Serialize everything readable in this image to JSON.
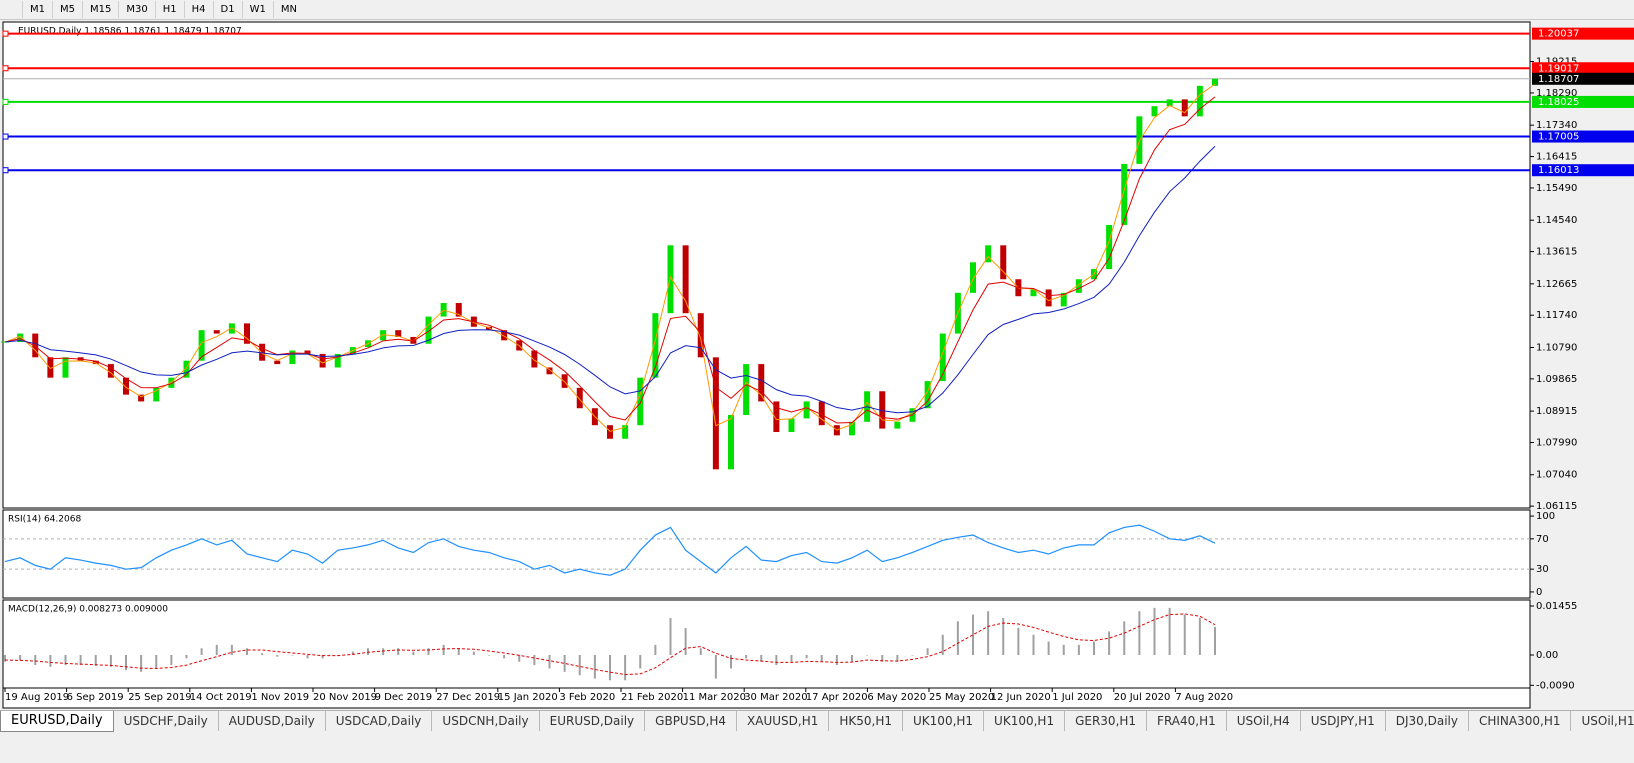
{
  "toolbar": {
    "periods": [
      "M1",
      "M5",
      "M15",
      "M30",
      "H1",
      "H4",
      "D1",
      "W1",
      "MN"
    ]
  },
  "chart_data": [
    {
      "type": "candlestick",
      "title": "EURUSD,Daily  1.18586 1.18761 1.18479 1.18707",
      "x_labels": [
        "19 Aug 2019",
        "6 Sep 2019",
        "25 Sep 2019",
        "14 Oct 2019",
        "1 Nov 2019",
        "20 Nov 2019",
        "9 Dec 2019",
        "27 Dec 2019",
        "15 Jan 2020",
        "3 Feb 2020",
        "21 Feb 2020",
        "11 Mar 2020",
        "30 Mar 2020",
        "17 Apr 2020",
        "6 May 2020",
        "25 May 2020",
        "12 Jun 2020",
        "1 Jul 2020",
        "20 Jul 2020",
        "7 Aug 2020"
      ],
      "close": [
        1.1095,
        1.112,
        1.105,
        1.099,
        1.105,
        1.104,
        1.103,
        1.099,
        1.094,
        1.092,
        1.096,
        1.099,
        1.104,
        1.113,
        1.112,
        1.115,
        1.109,
        1.104,
        1.103,
        1.107,
        1.106,
        1.102,
        1.106,
        1.108,
        1.11,
        1.113,
        1.111,
        1.109,
        1.117,
        1.121,
        1.117,
        1.114,
        1.113,
        1.11,
        1.107,
        1.102,
        1.1,
        1.096,
        1.09,
        1.085,
        1.081,
        1.085,
        1.099,
        1.118,
        1.138,
        1.118,
        1.105,
        1.072,
        1.088,
        1.103,
        1.092,
        1.083,
        1.087,
        1.092,
        1.085,
        1.082,
        1.086,
        1.095,
        1.084,
        1.086,
        1.09,
        1.098,
        1.112,
        1.124,
        1.133,
        1.138,
        1.128,
        1.123,
        1.125,
        1.12,
        1.124,
        1.128,
        1.131,
        1.144,
        1.162,
        1.176,
        1.179,
        1.181,
        1.176,
        1.185,
        1.18707
      ],
      "ylim": [
        1.0606,
        1.2038
      ],
      "yticks": [
        1.06115,
        {
          "value": 1.0704,
          "label": "1.07040"
        },
        {
          "value": 1.0799,
          "label": "1.07990"
        },
        1.08915,
        1.09865,
        {
          "value": 1.1079,
          "label": "1.10790"
        },
        {
          "value": 1.1174,
          "label": "1.11740"
        },
        1.12665,
        1.13615,
        {
          "value": 1.1454,
          "label": "1.14540"
        },
        {
          "value": 1.1549,
          "label": "1.15490"
        },
        1.16415,
        {
          "value": 1.1734,
          "label": "1.17340"
        },
        {
          "value": 1.1829,
          "label": "1.18290"
        },
        1.19215
      ],
      "bull_color": "#00e000",
      "bear_color": "#c00000",
      "levels": [
        {
          "value": 1.20037,
          "color": "#ff0000"
        },
        {
          "value": 1.19017,
          "color": "#ff0000"
        },
        {
          "value": 1.18025,
          "color": "#00dd00"
        },
        {
          "value": 1.17005,
          "color": "#0000ee"
        },
        {
          "value": 1.16013,
          "color": "#0000ee"
        }
      ],
      "current_price": 1.18707
    },
    {
      "type": "line",
      "title": "RSI(14) 64.2068",
      "color": "#1e90ff",
      "values": [
        40,
        45,
        35,
        30,
        45,
        42,
        38,
        35,
        30,
        32,
        45,
        55,
        62,
        70,
        62,
        68,
        50,
        45,
        40,
        55,
        50,
        38,
        55,
        58,
        62,
        68,
        58,
        52,
        65,
        70,
        60,
        55,
        52,
        45,
        40,
        30,
        35,
        25,
        30,
        25,
        22,
        30,
        55,
        75,
        85,
        55,
        40,
        25,
        45,
        60,
        42,
        40,
        48,
        52,
        40,
        38,
        45,
        55,
        40,
        45,
        52,
        60,
        68,
        72,
        75,
        65,
        58,
        52,
        55,
        50,
        58,
        62,
        62,
        78,
        85,
        88,
        80,
        70,
        68,
        74,
        64.2068
      ],
      "ylim": [
        -8,
        108
      ],
      "yticks": [
        0,
        30,
        70,
        100
      ]
    },
    {
      "type": "macd",
      "title": "MACD(12,26,9) 0.008273 0.009000",
      "histogram_color": "#a0a0a0",
      "signal_color": "#e00000",
      "histogram": [
        -0.002,
        -0.0015,
        -0.003,
        -0.0035,
        -0.003,
        -0.003,
        -0.0032,
        -0.0035,
        -0.0045,
        -0.005,
        -0.004,
        -0.003,
        -0.001,
        0.002,
        0.003,
        0.003,
        0.002,
        0.0005,
        -0.0005,
        0,
        -0.001,
        -0.001,
        0,
        0.001,
        0.002,
        0.002,
        0.002,
        0.001,
        0.002,
        0.003,
        0.002,
        0.001,
        0,
        -0.001,
        -0.002,
        -0.003,
        -0.004,
        -0.005,
        -0.006,
        -0.007,
        -0.0075,
        -0.0075,
        -0.004,
        0.003,
        0.011,
        0.008,
        0.002,
        -0.007,
        -0.004,
        -0.001,
        -0.002,
        -0.003,
        -0.002,
        -0.001,
        -0.002,
        -0.003,
        -0.002,
        0,
        -0.002,
        -0.002,
        0,
        0.002,
        0.006,
        0.01,
        0.012,
        0.013,
        0.011,
        0.008,
        0.006,
        0.004,
        0.003,
        0.003,
        0.004,
        0.007,
        0.01,
        0.013,
        0.014,
        0.014,
        0.012,
        0.011,
        0.008273
      ],
      "signal": [
        -0.0015,
        -0.0016,
        -0.0018,
        -0.0022,
        -0.0025,
        -0.0027,
        -0.0029,
        -0.0031,
        -0.0035,
        -0.0039,
        -0.004,
        -0.0037,
        -0.003,
        -0.0017,
        -0.0005,
        0.0008,
        0.0015,
        0.0015,
        0.001,
        0.0006,
        0.0002,
        -0.0002,
        -0.0002,
        0.0002,
        0.0008,
        0.0012,
        0.0015,
        0.0014,
        0.0015,
        0.0018,
        0.0019,
        0.0017,
        0.0012,
        0.0006,
        -0.0001,
        -0.0009,
        -0.0017,
        -0.0025,
        -0.0034,
        -0.0043,
        -0.0051,
        -0.0058,
        -0.0056,
        -0.0038,
        -0.0008,
        0.002,
        0.0025,
        0.0005,
        -0.001,
        -0.0015,
        -0.0018,
        -0.0022,
        -0.0022,
        -0.0019,
        -0.002,
        -0.0022,
        -0.0021,
        -0.0015,
        -0.0017,
        -0.0018,
        -0.0013,
        -0.0005,
        0.001,
        0.0035,
        0.006,
        0.0085,
        0.0095,
        0.0092,
        0.0082,
        0.0068,
        0.0055,
        0.0045,
        0.0043,
        0.005,
        0.0065,
        0.0085,
        0.0105,
        0.012,
        0.0122,
        0.0115,
        0.009
      ],
      "ylim": [
        -0.0098,
        0.01633
      ],
      "yticks": [
        0.01455,
        {
          "value": 0,
          "label": "0.00"
        },
        {
          "value": -0.009,
          "label": "-0.0090"
        }
      ]
    }
  ],
  "tabs": [
    "EURUSD,Daily",
    "USDCHF,Daily",
    "AUDUSD,Daily",
    "USDCAD,Daily",
    "USDCNH,Daily",
    "EURUSD,Daily",
    "GBPUSD,H4",
    "XAUUSD,H1",
    "HK50,H1",
    "UK100,H1",
    "UK100,H1",
    "GER30,H1",
    "FRA40,H1",
    "USOil,H4",
    "USDJPY,H1",
    "DJ30,Daily",
    "CHINA300,H1",
    "USOil,H1"
  ]
}
